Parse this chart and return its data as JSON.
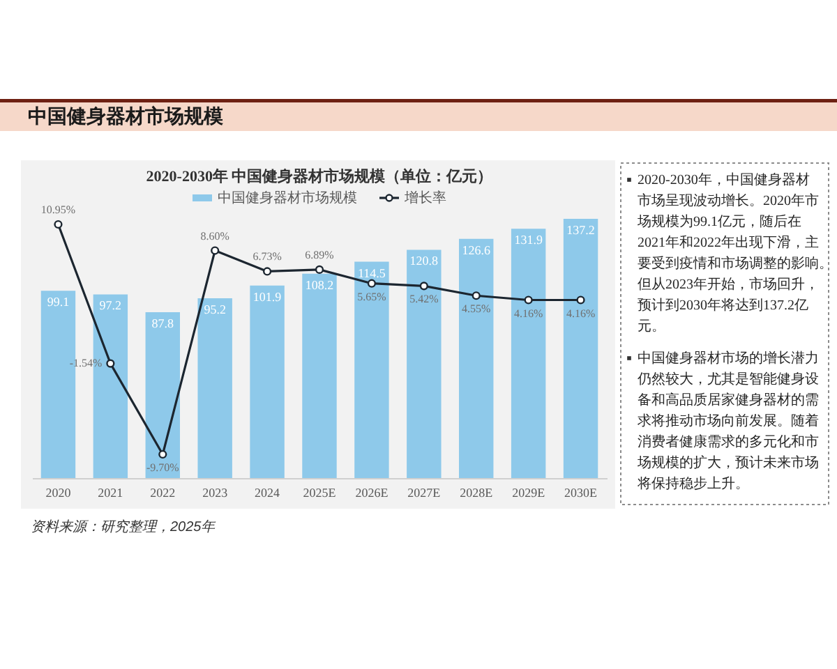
{
  "chart_data": {
    "type": "bar",
    "title": "中国健身器材市场规模",
    "subtitle": "2020-2030年 中国健身器材市场规模（单位：亿元）",
    "categories": [
      "2020",
      "2021",
      "2022",
      "2023",
      "2024",
      "2025E",
      "2026E",
      "2027E",
      "2028E",
      "2029E",
      "2030E"
    ],
    "series": [
      {
        "name": "中国健身器材市场规模",
        "color": "#8ec9ea",
        "values": [
          99.1,
          97.2,
          87.8,
          95.2,
          101.9,
          108.2,
          114.5,
          120.8,
          126.6,
          131.9,
          137.2
        ],
        "value_labels": [
          "99.1",
          "97.2",
          "87.8",
          "95.2",
          "101.9",
          "108.2",
          "114.5",
          "120.8",
          "126.6",
          "131.9",
          "137.2"
        ]
      },
      {
        "name": "增长率",
        "type": "line",
        "axis": "y2",
        "color": "#1c2630",
        "values": [
          10.95,
          -1.54,
          -9.7,
          8.6,
          6.73,
          6.89,
          5.65,
          5.42,
          4.55,
          4.16,
          4.16
        ],
        "value_labels": [
          "10.95%",
          "-1.54%",
          "-9.70%",
          "8.60%",
          "6.73%",
          "6.89%",
          "5.65%",
          "5.42%",
          "4.55%",
          "4.16%",
          "4.16%"
        ]
      }
    ],
    "tick_labels": "x",
    "legend": "top",
    "marker": "circle",
    "line_style": "solid",
    "annotations": [
      "2020-2030年，中国健身器材市场呈现波动增长。2020年市场规模为99.1亿元，随后在2021年和2022年出现下滑，主要受到疫情和市场调整的影响。但从2023年开始，市场回升，预计到2030年将达到137.2亿元。",
      "中国健身器材市场的增长潜力仍然较大，尤其是智能健身设备和高品质居家健身器材的需求将推动市场向前发展。随着消费者健康需求的多元化和市场规模的扩大，预计未来市场将保持稳步上升。",
      "资料来源：研究整理，2025年"
    ]
  }
}
